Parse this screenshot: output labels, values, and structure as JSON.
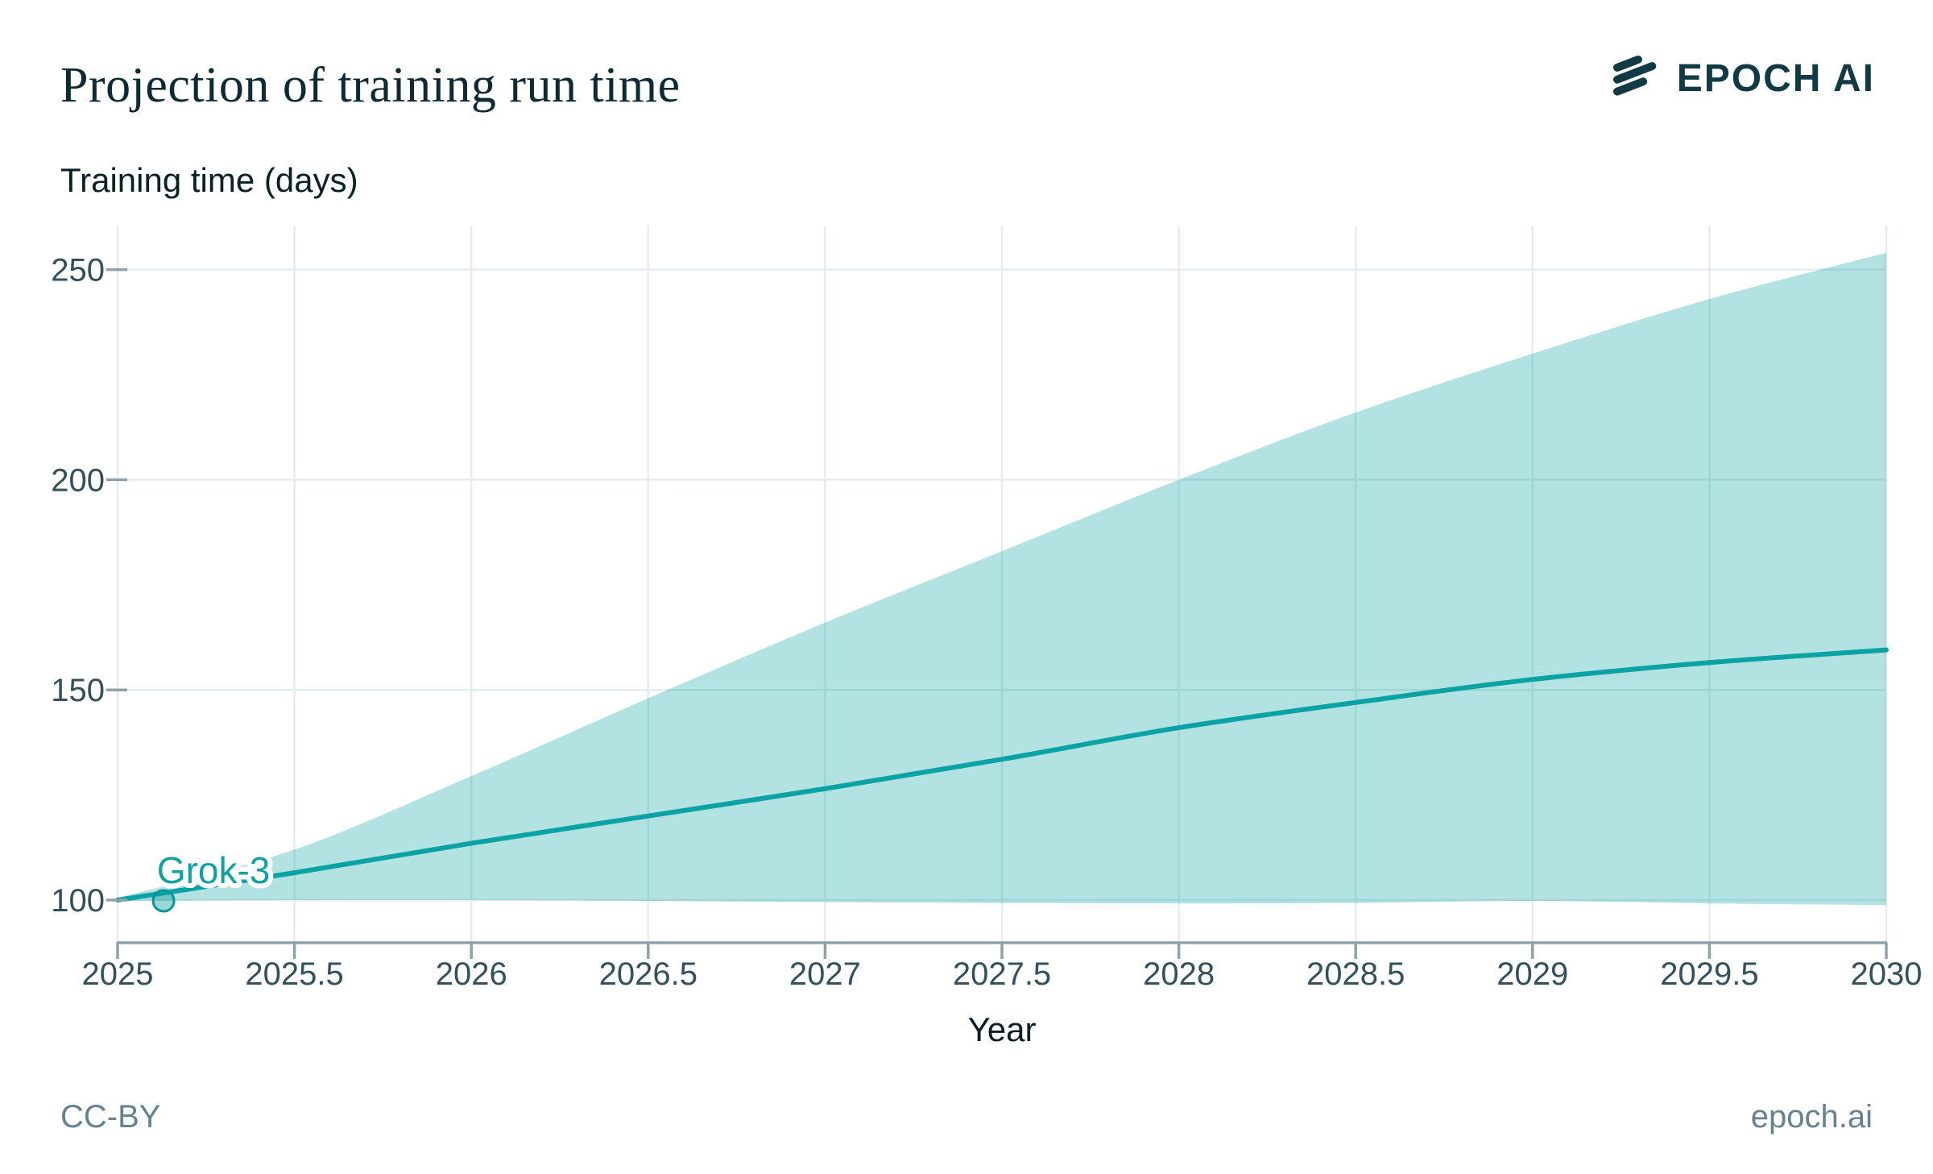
{
  "header": {
    "title": "Projection of training run time",
    "logo": {
      "text": "EPOCH AI",
      "icon": "epoch-logo-icon"
    }
  },
  "footer": {
    "license": "CC-BY",
    "site": "epoch.ai"
  },
  "colors": {
    "accent_teal": "#0aa3a3",
    "band_fill": "rgba(10,163,163,0.31)",
    "point_fill": "rgba(10,163,163,0.42)",
    "point_stroke": "#0d9494",
    "annotation_text": "#11a1a1",
    "annotation_halo": "#ffffff",
    "grid": "#e4ecef",
    "axis": "#8fa2ac",
    "tick_text": "#33505c",
    "xlabel_text": "#0c1d24",
    "footer_text": "#66828f",
    "logo_dark": "#123a44"
  },
  "chart_data": {
    "type": "area",
    "title": "Projection of training run time",
    "xlabel": "Year",
    "ylabel": "Training time (days)",
    "xlim": [
      2025,
      2030
    ],
    "ylim": [
      92,
      263
    ],
    "grid": true,
    "legend_position": "none",
    "x_ticks": [
      2025,
      2025.5,
      2026,
      2026.5,
      2027,
      2027.5,
      2028,
      2028.5,
      2029,
      2029.5,
      2030
    ],
    "x_tick_labels": [
      "2025",
      "2025.5",
      "2026",
      "2026.5",
      "2027",
      "2027.5",
      "2028",
      "2028.5",
      "2029",
      "2029.5",
      "2030"
    ],
    "y_ticks": [
      100,
      150,
      200,
      250
    ],
    "y_tick_labels": [
      "100",
      "150",
      "200",
      "250"
    ],
    "x": [
      2025,
      2025.5,
      2026,
      2026.5,
      2027,
      2027.5,
      2028,
      2028.5,
      2029,
      2029.5,
      2030
    ],
    "series": [
      {
        "name": "median projection",
        "type": "line",
        "values": [
          100,
          106.5,
          113.5,
          120,
          126.5,
          133.5,
          141,
          147,
          152.5,
          156.5,
          159.5
        ]
      },
      {
        "name": "band upper bound",
        "type": "area-bound",
        "values": [
          100.5,
          112,
          129.5,
          148,
          166,
          183,
          200,
          216,
          230,
          243,
          254
        ]
      },
      {
        "name": "band lower bound",
        "type": "area-bound",
        "values": [
          99.8,
          100,
          100,
          99.8,
          99.5,
          99.3,
          99.2,
          99.3,
          99.8,
          99.2,
          98.8
        ]
      }
    ],
    "annotations": [
      {
        "label": "Grok-3",
        "x": 2025.13,
        "y": 99.8
      }
    ]
  }
}
